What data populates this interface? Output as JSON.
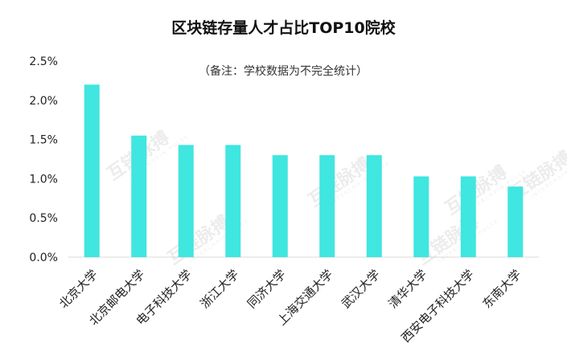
{
  "chart_data": {
    "type": "bar",
    "title": "区块链存量人才占比TOP10院校",
    "subtitle": "（备注：学校数据为不完全统计）",
    "categories": [
      "北京大学",
      "北京邮电大学",
      "电子科技大学",
      "浙江大学",
      "同济大学",
      "上海交通大学",
      "武汉大学",
      "清华大学",
      "西安电子科技大学",
      "东南大学"
    ],
    "values": [
      2.2,
      1.55,
      1.43,
      1.43,
      1.3,
      1.3,
      1.3,
      1.03,
      1.03,
      0.9
    ],
    "ylim": [
      0,
      2.5
    ],
    "yticks": [
      "0.0%",
      "0.5%",
      "1.0%",
      "1.5%",
      "2.0%",
      "2.5%"
    ],
    "bar_color": "#40e6e0",
    "grid": false,
    "legend": "none"
  },
  "watermark": {
    "text": "互链脉搏",
    "subtext": "INTERCHAIN PULSE"
  }
}
